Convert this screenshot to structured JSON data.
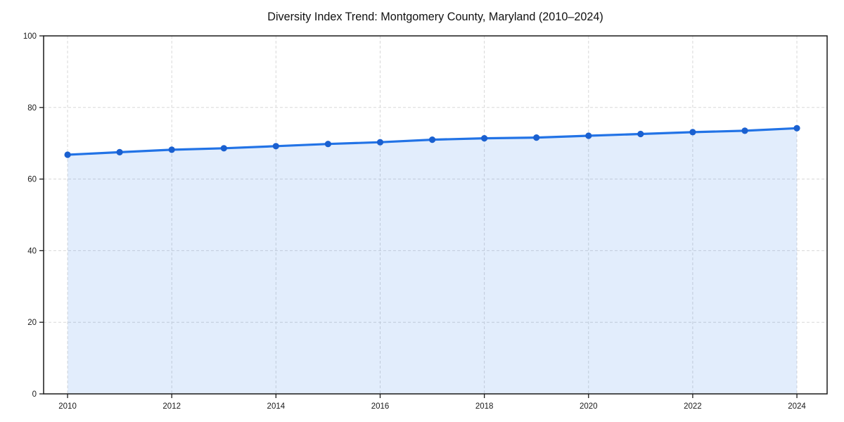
{
  "chart_data": {
    "type": "line",
    "title": "Diversity Index Trend: Montgomery County, Maryland (2010–2024)",
    "x": [
      2010,
      2011,
      2012,
      2013,
      2014,
      2015,
      2016,
      2017,
      2018,
      2019,
      2020,
      2021,
      2022,
      2023,
      2024
    ],
    "series": [
      {
        "name": "Diversity Index",
        "values": [
          66.8,
          67.5,
          68.2,
          68.6,
          69.2,
          69.8,
          70.3,
          71.0,
          71.4,
          71.6,
          72.1,
          72.6,
          73.1,
          73.5,
          74.2
        ]
      }
    ],
    "xlabel": "",
    "ylabel": "",
    "xlim": [
      2009.54,
      2024.58
    ],
    "ylim": [
      0,
      100
    ],
    "xticks": [
      2010,
      2012,
      2014,
      2016,
      2018,
      2020,
      2022,
      2024
    ],
    "yticks": [
      0,
      20,
      40,
      60,
      80,
      100
    ],
    "grid": "dashed-both-axes",
    "legend": "none",
    "area_fill": true,
    "marker": "circle",
    "colors": {
      "line": "#2273e6",
      "marker": "#1a60d0",
      "area_fill": "rgba(34,115,230,0.13)",
      "grid": "#d8d8d8",
      "axis_frame": "#1a1a1a",
      "text": "#1a1a1a",
      "background": "#ffffff"
    }
  }
}
